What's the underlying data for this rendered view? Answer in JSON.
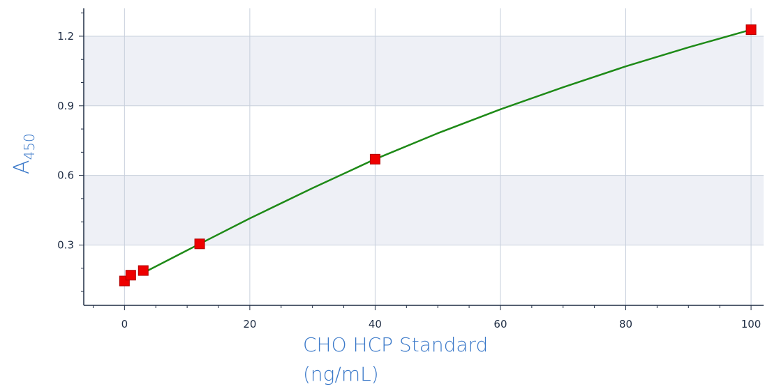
{
  "chart_data": {
    "type": "scatter",
    "xlabel": "CHO HCP Standard (ng/mL)",
    "xlabel_lines": [
      "CHO HCP Standard",
      "(ng/mL)"
    ],
    "ylabel_main": "A",
    "ylabel_sub": "450",
    "xlim": [
      -6.5,
      102
    ],
    "ylim": [
      0.04,
      1.32
    ],
    "x_ticks": [
      "0",
      "20",
      "40",
      "60",
      "80",
      "100"
    ],
    "y_ticks": [
      "0.3",
      "0.6",
      "0.9",
      "1.2"
    ],
    "grid": true,
    "colors": {
      "fit_line": "#1e8a17",
      "marker": "#ee0000",
      "band": "#eef0f6",
      "axis": "#1f2d44",
      "grid": "#c7cfdc"
    },
    "series": [
      {
        "points": [
          {
            "x": 0,
            "y": 0.145
          },
          {
            "x": 1,
            "y": 0.17
          },
          {
            "x": 3,
            "y": 0.19
          },
          {
            "x": 12,
            "y": 0.305
          },
          {
            "x": 40,
            "y": 0.67
          },
          {
            "x": 100,
            "y": 1.228
          }
        ]
      }
    ],
    "fit_curve": {
      "x": [
        3,
        12,
        20,
        30,
        40,
        50,
        60,
        70,
        80,
        90,
        100
      ],
      "y": [
        0.18,
        0.305,
        0.415,
        0.545,
        0.67,
        0.782,
        0.885,
        0.98,
        1.07,
        1.152,
        1.228
      ]
    }
  }
}
